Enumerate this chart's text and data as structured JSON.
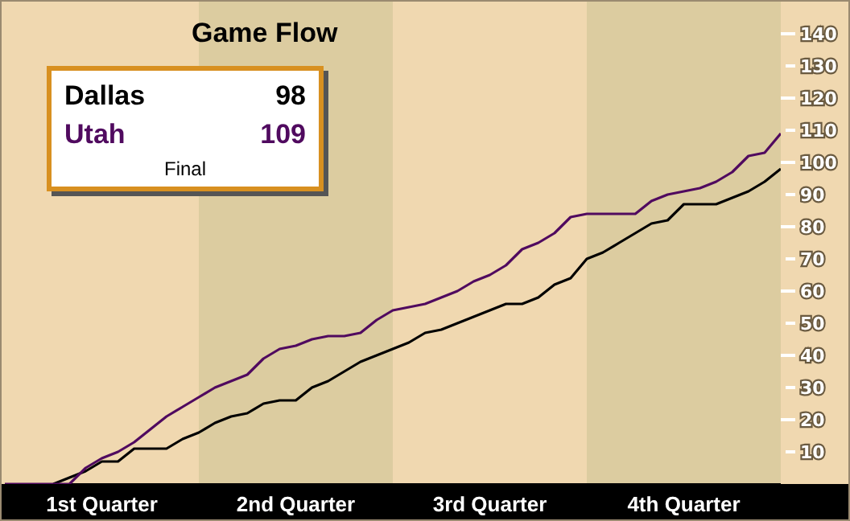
{
  "chart_data": {
    "type": "line",
    "title": "Game Flow",
    "annotations": [
      "98",
      "109",
      "Final"
    ],
    "legend": "top left",
    "marker": "none",
    "categories": [
      null,
      null,
      null,
      null,
      null,
      null,
      "1st Quarter",
      null,
      null,
      null,
      null,
      null,
      null,
      null,
      null,
      null,
      null,
      null,
      "2nd Quarter",
      null,
      null,
      null,
      null,
      null,
      null,
      null,
      null,
      null,
      null,
      null,
      "3rd Quarter",
      null,
      null,
      null,
      null,
      null,
      null,
      null,
      null,
      null,
      null,
      null,
      "4th Quarter",
      null,
      null,
      null,
      null,
      null,
      null
    ],
    "ylim": [
      0,
      150
    ],
    "yticks": [
      10,
      20,
      30,
      40,
      50,
      60,
      70,
      80,
      90,
      100,
      110,
      120,
      130,
      140
    ],
    "series": [
      {
        "name": "Dallas",
        "color": "#000000",
        "values": [
          null,
          null,
          null,
          0,
          2,
          4,
          7,
          7,
          11,
          11,
          11,
          14,
          16,
          19,
          21,
          22,
          25,
          26,
          26,
          30,
          32,
          35,
          38,
          40,
          42,
          44,
          47,
          48,
          50,
          52,
          54,
          56,
          56,
          58,
          62,
          64,
          70,
          72,
          75,
          78,
          81,
          82,
          87,
          87,
          87,
          89,
          91,
          94,
          98
        ]
      },
      {
        "name": "Utah",
        "color": "#500a5f",
        "values": [
          0,
          0,
          0,
          0,
          0,
          5,
          8,
          10,
          13,
          17,
          21,
          24,
          27,
          30,
          32,
          34,
          39,
          42,
          43,
          45,
          46,
          46,
          47,
          51,
          54,
          55,
          56,
          58,
          60,
          63,
          65,
          68,
          73,
          75,
          78,
          83,
          84,
          84,
          84,
          84,
          88,
          90,
          91,
          92,
          94,
          97,
          102,
          103,
          109
        ]
      }
    ]
  }
}
